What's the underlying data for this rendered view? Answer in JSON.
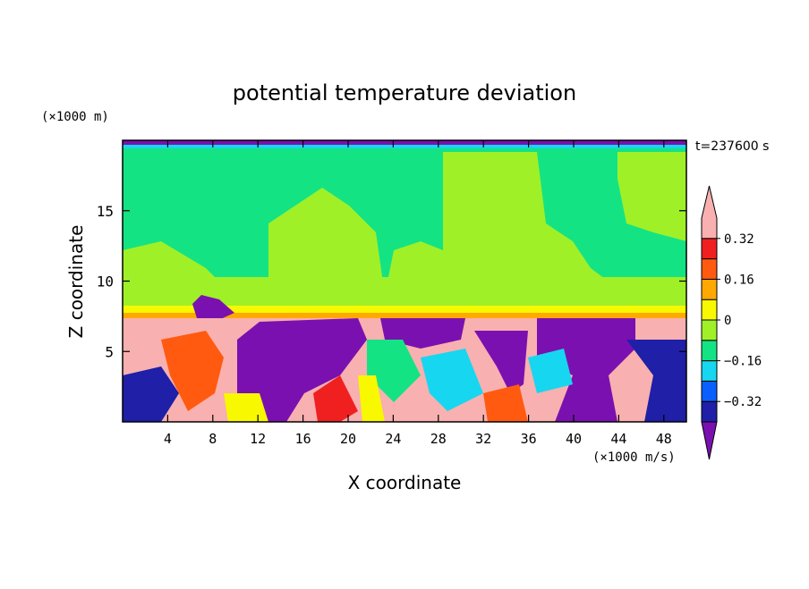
{
  "chart_data": {
    "type": "heatmap",
    "title": "potential temperature deviation",
    "xlabel": "X coordinate",
    "ylabel": "Z coordinate",
    "x_unit": "(×1000 m/s)",
    "y_unit": "(×1000 m)",
    "time_label": "t=237600 s",
    "xlim": [
      0,
      50
    ],
    "ylim": [
      0,
      20
    ],
    "x_ticks": [
      4,
      8,
      12,
      16,
      20,
      24,
      28,
      32,
      36,
      40,
      44,
      48
    ],
    "y_ticks": [
      5,
      10,
      15
    ],
    "colorbar": {
      "levels": [
        -0.4,
        -0.32,
        -0.24,
        -0.16,
        -0.08,
        0,
        0.08,
        0.16,
        0.24,
        0.32,
        0.4
      ],
      "labels": [
        "0.32",
        "0.16",
        "0",
        "−0.16",
        "−0.32"
      ],
      "label_values": [
        0.32,
        0.16,
        0,
        -0.16,
        -0.32
      ],
      "colors": [
        "#7b10b0",
        "#1f1fa8",
        "#0a60ff",
        "#17d6f0",
        "#14e384",
        "#a0f028",
        "#f8f800",
        "#ffa800",
        "#ff5a10",
        "#f02020",
        "#f8b0b0"
      ]
    }
  }
}
